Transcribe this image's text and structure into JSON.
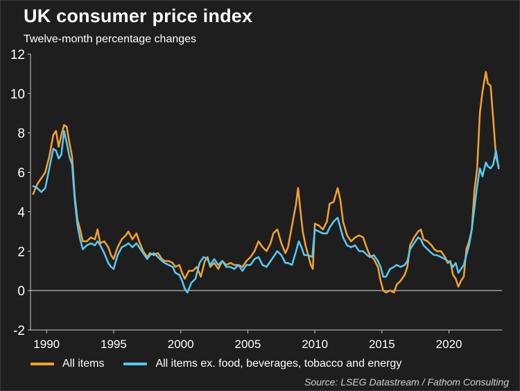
{
  "header": {
    "title": "UK consumer price index",
    "subtitle": "Twelve-month percentage changes"
  },
  "source": "Source: LSEG Datastream / Fathom Consulting",
  "colors": {
    "background": "#1e1e1e",
    "all_items": "#f0a030",
    "core": "#55c8f5",
    "axis": "#cccccc"
  },
  "chart_data": {
    "type": "line",
    "title": "UK consumer price index",
    "subtitle": "Twelve-month percentage changes",
    "xlabel": "",
    "ylabel": "",
    "xlim": [
      1988.8,
      2023.95
    ],
    "ylim": [
      -2,
      12
    ],
    "x_ticks": [
      1990,
      1995,
      2000,
      2005,
      2010,
      2015,
      2020
    ],
    "y_ticks": [
      -2,
      0,
      2,
      4,
      6,
      8,
      10,
      12
    ],
    "grid": false,
    "legend_position": "bottom",
    "series": [
      {
        "name": "All items",
        "color": "#f0a030",
        "points": [
          [
            1989.0,
            4.9
          ],
          [
            1989.3,
            5.4
          ],
          [
            1989.6,
            5.7
          ],
          [
            1989.9,
            6.0
          ],
          [
            1990.2,
            6.8
          ],
          [
            1990.5,
            7.9
          ],
          [
            1990.7,
            8.1
          ],
          [
            1990.9,
            7.3
          ],
          [
            1991.1,
            7.9
          ],
          [
            1991.3,
            8.4
          ],
          [
            1991.5,
            8.3
          ],
          [
            1991.7,
            7.5
          ],
          [
            1991.9,
            6.8
          ],
          [
            1992.1,
            4.8
          ],
          [
            1992.3,
            3.6
          ],
          [
            1992.5,
            3.1
          ],
          [
            1992.7,
            2.5
          ],
          [
            1993.0,
            2.5
          ],
          [
            1993.3,
            2.7
          ],
          [
            1993.6,
            2.6
          ],
          [
            1993.8,
            3.1
          ],
          [
            1994.0,
            2.4
          ],
          [
            1994.3,
            2.5
          ],
          [
            1994.6,
            2.2
          ],
          [
            1994.8,
            1.8
          ],
          [
            1995.0,
            1.6
          ],
          [
            1995.3,
            2.2
          ],
          [
            1995.6,
            2.6
          ],
          [
            1995.9,
            2.8
          ],
          [
            1996.1,
            3.0
          ],
          [
            1996.4,
            2.6
          ],
          [
            1996.7,
            2.9
          ],
          [
            1996.9,
            2.5
          ],
          [
            1997.2,
            2.0
          ],
          [
            1997.5,
            1.7
          ],
          [
            1997.7,
            1.9
          ],
          [
            1998.0,
            1.8
          ],
          [
            1998.3,
            1.9
          ],
          [
            1998.6,
            1.6
          ],
          [
            1998.8,
            1.5
          ],
          [
            1999.1,
            1.5
          ],
          [
            1999.4,
            1.4
          ],
          [
            1999.6,
            1.2
          ],
          [
            1999.9,
            1.3
          ],
          [
            2000.1,
            0.9
          ],
          [
            2000.3,
            0.6
          ],
          [
            2000.6,
            1.0
          ],
          [
            2000.9,
            1.0
          ],
          [
            2001.2,
            1.2
          ],
          [
            2001.5,
            0.7
          ],
          [
            2001.8,
            1.5
          ],
          [
            2002.0,
            1.7
          ],
          [
            2002.2,
            1.2
          ],
          [
            2002.5,
            1.4
          ],
          [
            2002.8,
            1.1
          ],
          [
            2003.1,
            1.5
          ],
          [
            2003.4,
            1.3
          ],
          [
            2003.7,
            1.4
          ],
          [
            2004.0,
            1.3
          ],
          [
            2004.3,
            1.3
          ],
          [
            2004.6,
            1.2
          ],
          [
            2004.9,
            1.5
          ],
          [
            2005.2,
            1.7
          ],
          [
            2005.5,
            2.0
          ],
          [
            2005.8,
            2.5
          ],
          [
            2006.1,
            2.2
          ],
          [
            2006.4,
            2.0
          ],
          [
            2006.7,
            2.4
          ],
          [
            2006.9,
            2.9
          ],
          [
            2007.2,
            3.1
          ],
          [
            2007.5,
            2.4
          ],
          [
            2007.8,
            1.9
          ],
          [
            2008.0,
            2.2
          ],
          [
            2008.3,
            3.3
          ],
          [
            2008.6,
            4.4
          ],
          [
            2008.75,
            5.2
          ],
          [
            2008.95,
            3.9
          ],
          [
            2009.1,
            3.0
          ],
          [
            2009.3,
            2.3
          ],
          [
            2009.5,
            1.8
          ],
          [
            2009.7,
            1.3
          ],
          [
            2009.85,
            1.1
          ],
          [
            2010.0,
            3.4
          ],
          [
            2010.3,
            3.3
          ],
          [
            2010.6,
            3.1
          ],
          [
            2010.9,
            3.5
          ],
          [
            2011.1,
            4.4
          ],
          [
            2011.4,
            4.5
          ],
          [
            2011.7,
            5.2
          ],
          [
            2011.9,
            4.6
          ],
          [
            2012.1,
            3.5
          ],
          [
            2012.4,
            2.8
          ],
          [
            2012.7,
            2.5
          ],
          [
            2013.0,
            2.7
          ],
          [
            2013.3,
            2.8
          ],
          [
            2013.6,
            2.7
          ],
          [
            2013.9,
            2.1
          ],
          [
            2014.1,
            1.8
          ],
          [
            2014.4,
            1.6
          ],
          [
            2014.7,
            1.2
          ],
          [
            2014.9,
            0.5
          ],
          [
            2015.1,
            0.0
          ],
          [
            2015.3,
            -0.1
          ],
          [
            2015.6,
            0.0
          ],
          [
            2015.9,
            -0.1
          ],
          [
            2016.1,
            0.3
          ],
          [
            2016.4,
            0.5
          ],
          [
            2016.7,
            0.8
          ],
          [
            2016.9,
            1.2
          ],
          [
            2017.1,
            2.3
          ],
          [
            2017.4,
            2.7
          ],
          [
            2017.7,
            3.0
          ],
          [
            2017.9,
            3.1
          ],
          [
            2018.1,
            2.6
          ],
          [
            2018.4,
            2.5
          ],
          [
            2018.7,
            2.3
          ],
          [
            2018.9,
            2.1
          ],
          [
            2019.1,
            2.0
          ],
          [
            2019.4,
            2.0
          ],
          [
            2019.7,
            1.7
          ],
          [
            2019.9,
            1.4
          ],
          [
            2020.1,
            1.5
          ],
          [
            2020.3,
            0.8
          ],
          [
            2020.5,
            0.6
          ],
          [
            2020.7,
            0.2
          ],
          [
            2020.9,
            0.5
          ],
          [
            2021.1,
            0.7
          ],
          [
            2021.3,
            2.1
          ],
          [
            2021.5,
            2.5
          ],
          [
            2021.7,
            3.1
          ],
          [
            2021.9,
            5.1
          ],
          [
            2022.1,
            6.2
          ],
          [
            2022.3,
            9.0
          ],
          [
            2022.5,
            10.1
          ],
          [
            2022.75,
            11.1
          ],
          [
            2022.9,
            10.5
          ],
          [
            2023.1,
            10.4
          ],
          [
            2023.3,
            8.7
          ],
          [
            2023.5,
            6.8
          ],
          [
            2023.7,
            6.3
          ]
        ]
      },
      {
        "name": "All items ex. food, beverages, tobacco and energy",
        "color": "#55c8f5",
        "points": [
          [
            1989.0,
            5.3
          ],
          [
            1989.3,
            5.2
          ],
          [
            1989.6,
            5.0
          ],
          [
            1989.9,
            5.2
          ],
          [
            1990.2,
            6.2
          ],
          [
            1990.5,
            7.2
          ],
          [
            1990.7,
            7.1
          ],
          [
            1990.9,
            6.7
          ],
          [
            1991.1,
            6.9
          ],
          [
            1991.3,
            8.1
          ],
          [
            1991.5,
            7.5
          ],
          [
            1991.7,
            6.8
          ],
          [
            1991.9,
            6.4
          ],
          [
            1992.1,
            4.6
          ],
          [
            1992.3,
            3.3
          ],
          [
            1992.5,
            2.6
          ],
          [
            1992.7,
            2.1
          ],
          [
            1993.0,
            2.3
          ],
          [
            1993.3,
            2.4
          ],
          [
            1993.6,
            2.3
          ],
          [
            1993.8,
            2.5
          ],
          [
            1994.0,
            2.3
          ],
          [
            1994.3,
            1.9
          ],
          [
            1994.6,
            1.4
          ],
          [
            1994.8,
            1.2
          ],
          [
            1995.0,
            1.1
          ],
          [
            1995.3,
            1.8
          ],
          [
            1995.6,
            2.2
          ],
          [
            1995.9,
            2.3
          ],
          [
            1996.1,
            2.4
          ],
          [
            1996.4,
            2.2
          ],
          [
            1996.7,
            2.4
          ],
          [
            1996.9,
            2.2
          ],
          [
            1997.2,
            1.9
          ],
          [
            1997.5,
            1.6
          ],
          [
            1997.7,
            1.8
          ],
          [
            1998.0,
            1.9
          ],
          [
            1998.3,
            1.7
          ],
          [
            1998.6,
            1.5
          ],
          [
            1998.8,
            1.4
          ],
          [
            1999.1,
            1.3
          ],
          [
            1999.4,
            1.2
          ],
          [
            1999.6,
            0.9
          ],
          [
            1999.9,
            0.8
          ],
          [
            2000.1,
            0.5
          ],
          [
            2000.3,
            0.1
          ],
          [
            2000.5,
            -0.1
          ],
          [
            2000.8,
            0.4
          ],
          [
            2001.1,
            0.6
          ],
          [
            2001.4,
            1.4
          ],
          [
            2001.7,
            1.7
          ],
          [
            2002.0,
            1.6
          ],
          [
            2002.2,
            1.3
          ],
          [
            2002.5,
            1.6
          ],
          [
            2002.8,
            1.3
          ],
          [
            2003.1,
            1.5
          ],
          [
            2003.4,
            1.2
          ],
          [
            2003.7,
            1.2
          ],
          [
            2004.0,
            1.1
          ],
          [
            2004.3,
            1.3
          ],
          [
            2004.6,
            1.0
          ],
          [
            2004.9,
            1.3
          ],
          [
            2005.2,
            1.3
          ],
          [
            2005.5,
            1.6
          ],
          [
            2005.8,
            1.7
          ],
          [
            2006.1,
            1.3
          ],
          [
            2006.4,
            1.2
          ],
          [
            2006.7,
            1.5
          ],
          [
            2006.9,
            1.7
          ],
          [
            2007.2,
            2.0
          ],
          [
            2007.5,
            1.8
          ],
          [
            2007.8,
            1.4
          ],
          [
            2008.0,
            1.4
          ],
          [
            2008.3,
            1.3
          ],
          [
            2008.6,
            2.0
          ],
          [
            2008.8,
            2.5
          ],
          [
            2009.0,
            2.2
          ],
          [
            2009.2,
            1.8
          ],
          [
            2009.5,
            1.8
          ],
          [
            2009.8,
            1.7
          ],
          [
            2010.0,
            3.1
          ],
          [
            2010.3,
            3.0
          ],
          [
            2010.6,
            2.9
          ],
          [
            2010.9,
            2.9
          ],
          [
            2011.1,
            3.2
          ],
          [
            2011.4,
            3.5
          ],
          [
            2011.7,
            3.7
          ],
          [
            2011.9,
            3.2
          ],
          [
            2012.1,
            2.7
          ],
          [
            2012.4,
            2.3
          ],
          [
            2012.7,
            2.2
          ],
          [
            2013.0,
            2.3
          ],
          [
            2013.3,
            2.0
          ],
          [
            2013.6,
            2.0
          ],
          [
            2013.9,
            1.8
          ],
          [
            2014.1,
            1.7
          ],
          [
            2014.4,
            1.8
          ],
          [
            2014.7,
            1.5
          ],
          [
            2014.9,
            1.2
          ],
          [
            2015.1,
            0.7
          ],
          [
            2015.3,
            0.7
          ],
          [
            2015.6,
            1.1
          ],
          [
            2015.9,
            1.2
          ],
          [
            2016.1,
            1.3
          ],
          [
            2016.4,
            1.2
          ],
          [
            2016.7,
            1.3
          ],
          [
            2016.9,
            1.5
          ],
          [
            2017.1,
            2.1
          ],
          [
            2017.4,
            2.4
          ],
          [
            2017.7,
            2.7
          ],
          [
            2017.9,
            2.6
          ],
          [
            2018.1,
            2.3
          ],
          [
            2018.4,
            2.1
          ],
          [
            2018.7,
            1.9
          ],
          [
            2018.9,
            1.8
          ],
          [
            2019.1,
            1.8
          ],
          [
            2019.4,
            1.7
          ],
          [
            2019.7,
            1.6
          ],
          [
            2019.9,
            1.5
          ],
          [
            2020.1,
            1.4
          ],
          [
            2020.3,
            1.2
          ],
          [
            2020.5,
            1.4
          ],
          [
            2020.7,
            0.9
          ],
          [
            2020.9,
            1.1
          ],
          [
            2021.1,
            1.3
          ],
          [
            2021.3,
            1.8
          ],
          [
            2021.5,
            2.3
          ],
          [
            2021.7,
            3.1
          ],
          [
            2021.9,
            4.2
          ],
          [
            2022.1,
            5.3
          ],
          [
            2022.3,
            6.2
          ],
          [
            2022.5,
            5.8
          ],
          [
            2022.75,
            6.5
          ],
          [
            2022.9,
            6.3
          ],
          [
            2023.1,
            6.2
          ],
          [
            2023.3,
            6.4
          ],
          [
            2023.5,
            7.1
          ],
          [
            2023.7,
            6.2
          ]
        ]
      }
    ]
  }
}
